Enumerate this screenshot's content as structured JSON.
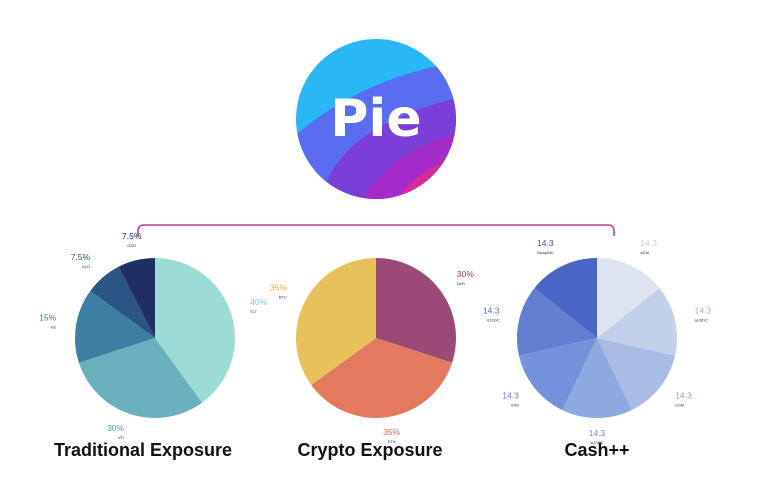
{
  "logo": {
    "text": "Pie",
    "colors": [
      "#2bb7f5",
      "#5a6cf0",
      "#7b3fd9",
      "#a52bc9",
      "#d62b9a"
    ]
  },
  "connector_color": "#c9378f",
  "chart_data": [
    {
      "type": "pie",
      "title": "Traditional Exposure",
      "slices": [
        {
          "value": 40,
          "pct_label": "40%",
          "name": "TLT",
          "color": "#9bdcd4",
          "label_color": "#7fd0c5"
        },
        {
          "value": 30,
          "pct_label": "30%",
          "name": "VTI",
          "color": "#6ab0be",
          "label_color": "#4aa0b5"
        },
        {
          "value": 15,
          "pct_label": "15%",
          "name": "EE",
          "color": "#3d7fa0",
          "label_color": "#3d7fa0"
        },
        {
          "value": 7.5,
          "pct_label": "7.5%",
          "name": "GLD",
          "color": "#2a5585",
          "label_color": "#2a5585"
        },
        {
          "value": 7.5,
          "pct_label": "7.5%",
          "name": "GSG",
          "color": "#1f2e63",
          "label_color": "#1f2e63"
        }
      ]
    },
    {
      "type": "pie",
      "title": "Crypto Exposure",
      "slices": [
        {
          "value": 30,
          "pct_label": "30%",
          "name": "DeFi",
          "color": "#9b4a78",
          "label_color": "#8f3f6e"
        },
        {
          "value": 35,
          "pct_label": "35%",
          "name": "ETH",
          "color": "#e37a60",
          "label_color": "#d9694e"
        },
        {
          "value": 35,
          "pct_label": "35%",
          "name": "BTC",
          "color": "#e9c15a",
          "label_color": "#e0b03e"
        }
      ]
    },
    {
      "type": "pie",
      "title": "Cash++",
      "slices": [
        {
          "value": 14.3,
          "pct_label": "14.3",
          "name": "aDAI",
          "color": "#dde3f0",
          "label_color": "#c5cfe6"
        },
        {
          "value": 14.3,
          "pct_label": "14.3",
          "name": "aUSDC",
          "color": "#c2d0ea",
          "label_color": "#9fb2dc"
        },
        {
          "value": 14.3,
          "pct_label": "14.3",
          "name": "cDAI",
          "color": "#a8bce6",
          "label_color": "#8aa3da"
        },
        {
          "value": 14.3,
          "pct_label": "14.3",
          "name": "cUSDC",
          "color": "#8ea8e0",
          "label_color": "#7190d0"
        },
        {
          "value": 14.3,
          "pct_label": "14.3",
          "name": "iDAI",
          "color": "#7491db",
          "label_color": "#5e7fcc"
        },
        {
          "value": 14.3,
          "pct_label": "14.3",
          "name": "iUSDC",
          "color": "#627fd2",
          "label_color": "#4f6fc6"
        },
        {
          "value": 14.3,
          "pct_label": "14.3",
          "name": "SwapDAI",
          "color": "#4a66c5",
          "label_color": "#3b56b4"
        }
      ]
    }
  ]
}
